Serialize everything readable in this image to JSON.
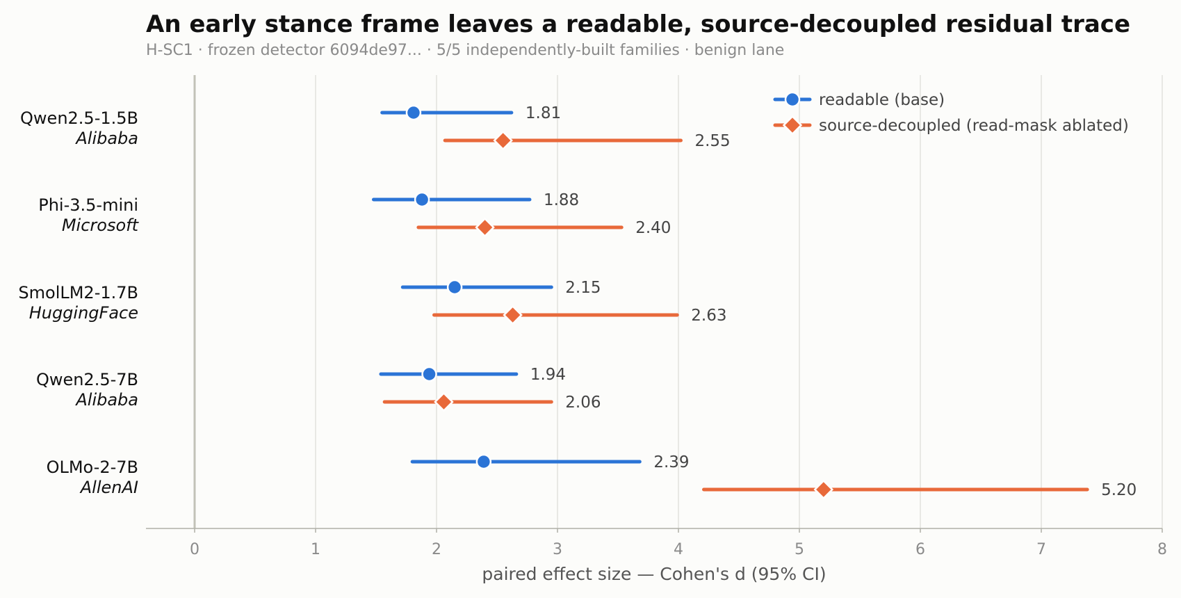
{
  "chart_data": {
    "type": "scatter",
    "subtype": "forest-plot-with-confidence-intervals",
    "title": "An early stance frame leaves a readable, source-decoupled residual trace",
    "subtitle": "H-SC1 · frozen detector 6094de97... · 5/5 independently-built families · benign lane",
    "xlabel": "paired effect size — Cohen's d (95% CI)",
    "xlim": [
      -0.4,
      8
    ],
    "xticks": [
      0,
      1,
      2,
      3,
      4,
      5,
      6,
      7,
      8
    ],
    "grid": "vertical",
    "legend_position": "top-right",
    "categories": [
      {
        "model": "Qwen2.5-1.5B",
        "family": "Alibaba"
      },
      {
        "model": "Phi-3.5-mini",
        "family": "Microsoft"
      },
      {
        "model": "SmolLM2-1.7B",
        "family": "HuggingFace"
      },
      {
        "model": "Qwen2.5-7B",
        "family": "Alibaba"
      },
      {
        "model": "OLMo-2-7B",
        "family": "AllenAI"
      }
    ],
    "series": [
      {
        "name": "readable (base)",
        "marker": "circle",
        "color": "#2b74d6",
        "values": [
          1.81,
          1.88,
          2.15,
          1.94,
          2.39
        ],
        "value_labels": [
          "1.81",
          "1.88",
          "2.15",
          "1.94",
          "2.39"
        ],
        "ci_low": [
          1.55,
          1.48,
          1.72,
          1.54,
          1.8
        ],
        "ci_high": [
          2.62,
          2.77,
          2.95,
          2.66,
          3.68
        ]
      },
      {
        "name": "source-decoupled (read-mask ablated)",
        "marker": "diamond",
        "color": "#e8693a",
        "values": [
          2.55,
          2.4,
          2.63,
          2.06,
          5.2
        ],
        "value_labels": [
          "2.55",
          "2.40",
          "2.63",
          "2.06",
          "5.20"
        ],
        "ci_low": [
          2.07,
          1.85,
          1.98,
          1.57,
          4.21
        ],
        "ci_high": [
          4.02,
          3.53,
          3.99,
          2.95,
          7.38
        ]
      }
    ]
  }
}
